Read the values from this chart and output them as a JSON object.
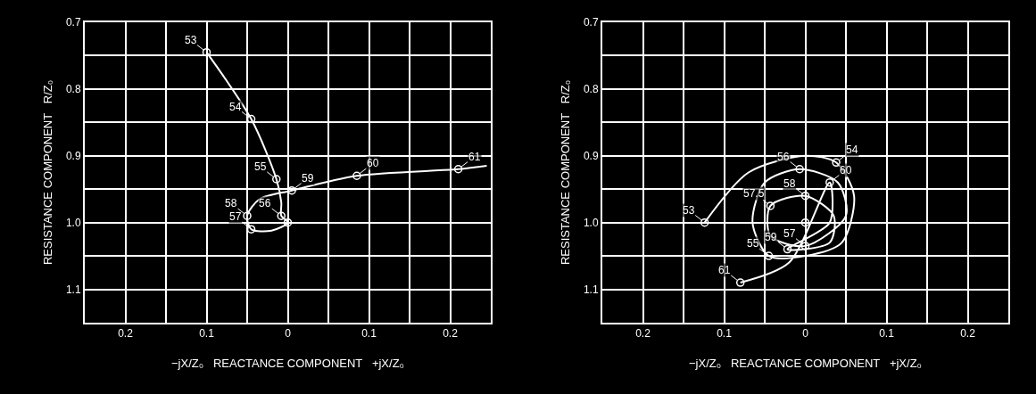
{
  "chart_data": [
    {
      "type": "line",
      "xlabel": "−jX/Z₀   REACTANCE COMPONENT   +jX/Z₀",
      "ylabel": "RESISTANCE COMPONENT   R/Z₀",
      "xlim": [
        -0.25,
        0.25
      ],
      "ylim": [
        1.15,
        0.7
      ],
      "xticks": [
        {
          "value": -0.25,
          "label": null
        },
        {
          "value": -0.2,
          "label": "0.2"
        },
        {
          "value": -0.15,
          "label": null
        },
        {
          "value": -0.1,
          "label": "0.1"
        },
        {
          "value": -0.05,
          "label": null
        },
        0,
        {
          "value": 0.05,
          "label": null
        },
        0.1,
        {
          "value": 0.15,
          "label": null
        },
        0.2,
        {
          "value": 0.25,
          "label": null
        }
      ],
      "yticks": [
        0.7,
        {
          "value": 0.75,
          "label": null
        },
        0.8,
        {
          "value": 0.85,
          "label": null
        },
        0.9,
        {
          "value": 0.95,
          "label": null
        },
        {
          "value": 1.0,
          "label": "1.0"
        },
        {
          "value": 1.05,
          "label": null
        },
        1.1,
        {
          "value": 1.15,
          "label": null
        }
      ],
      "grid": true,
      "series": [
        {
          "color": "#ffffff",
          "marker": "none",
          "x": [
            -0.1,
            -0.045,
            -0.014,
            -0.008,
            -0.008,
            0,
            -0.02,
            -0.045,
            -0.05,
            -0.035,
            0.005,
            0.085,
            0.21,
            0.245
          ],
          "values": [
            0.745,
            0.845,
            0.935,
            0.97,
            0.99,
            1.0,
            1.012,
            1.01,
            0.99,
            0.965,
            0.952,
            0.93,
            0.92,
            0.915
          ]
        },
        {
          "type": "scatter",
          "marker": "circle",
          "color": "#ffffff",
          "x": [
            -0.1,
            -0.045,
            -0.014,
            -0.008,
            -0.045,
            -0.05,
            0.005,
            0.085,
            0.21,
            0
          ],
          "values": [
            0.745,
            0.845,
            0.935,
            0.99,
            1.01,
            0.99,
            0.952,
            0.93,
            0.92,
            1.0
          ]
        }
      ],
      "annotations": [
        {
          "text": "53",
          "x": -0.1,
          "y": 0.745
        },
        {
          "text": "54",
          "x": -0.045,
          "y": 0.845
        },
        {
          "text": "55",
          "x": -0.014,
          "y": 0.935
        },
        {
          "text": "56",
          "x": -0.008,
          "y": 0.99
        },
        {
          "text": "57",
          "x": -0.045,
          "y": 1.01
        },
        {
          "text": "58",
          "x": -0.05,
          "y": 0.99
        },
        {
          "text": "59",
          "x": 0.005,
          "y": 0.952
        },
        {
          "text": "60",
          "x": 0.085,
          "y": 0.93
        },
        {
          "text": "61",
          "x": 0.21,
          "y": 0.92
        }
      ]
    },
    {
      "type": "line",
      "xlabel": "−jX/Z₀   REACTANCE COMPONENT   +jX/Z₀",
      "ylabel": "RESISTANCE COMPONENT   R/Z₀",
      "xlim": [
        -0.25,
        0.25
      ],
      "ylim": [
        1.15,
        0.7
      ],
      "xticks": [
        {
          "value": -0.25,
          "label": null
        },
        {
          "value": -0.2,
          "label": "0.2"
        },
        {
          "value": -0.15,
          "label": null
        },
        {
          "value": -0.1,
          "label": "0.1"
        },
        {
          "value": -0.05,
          "label": null
        },
        0,
        {
          "value": 0.05,
          "label": null
        },
        0.1,
        {
          "value": 0.15,
          "label": null
        },
        0.2,
        {
          "value": 0.25,
          "label": null
        }
      ],
      "yticks": [
        0.7,
        {
          "value": 0.75,
          "label": null
        },
        0.8,
        {
          "value": 0.85,
          "label": null
        },
        0.9,
        {
          "value": 0.95,
          "label": null
        },
        {
          "value": 1.0,
          "label": "1.0"
        },
        {
          "value": 1.05,
          "label": null
        },
        1.1,
        {
          "value": 1.15,
          "label": null
        }
      ],
      "grid": true,
      "series": [
        {
          "color": "#ffffff",
          "marker": "none",
          "x": [
            -0.124,
            -0.07,
            0,
            0.038,
            0.06,
            0.045,
            0,
            -0.045,
            -0.065,
            -0.05,
            -0.007,
            0.04,
            0.05,
            0,
            -0.043,
            -0.043,
            0,
            0.035,
            0.03,
            -0.022,
            0.03,
            0.03,
            -0.02,
            -0.08
          ],
          "values": [
            1.0,
            0.925,
            0.9,
            0.91,
            0.96,
            1.03,
            1.05,
            1.05,
            1.0,
            0.94,
            0.92,
            0.94,
            0.99,
            1.035,
            1.02,
            0.975,
            0.96,
            0.99,
            1.03,
            1.04,
            1.0,
            0.94,
            1.06,
            1.09
          ]
        },
        {
          "type": "scatter",
          "marker": "circle",
          "color": "#ffffff",
          "x": [
            -0.124,
            0.038,
            -0.045,
            -0.007,
            0,
            -0.043,
            0,
            -0.022,
            0.03,
            -0.08,
            0
          ],
          "values": [
            1.0,
            0.91,
            1.05,
            0.92,
            1.035,
            0.975,
            0.96,
            1.04,
            0.94,
            1.09,
            1.0
          ]
        }
      ],
      "annotations": [
        {
          "text": "53",
          "x": -0.124,
          "y": 1.0
        },
        {
          "text": "54",
          "x": 0.038,
          "y": 0.91
        },
        {
          "text": "55",
          "x": -0.045,
          "y": 1.05
        },
        {
          "text": "56",
          "x": -0.007,
          "y": 0.92
        },
        {
          "text": "57",
          "x": 0,
          "y": 1.035
        },
        {
          "text": "57.5",
          "x": -0.043,
          "y": 0.975
        },
        {
          "text": "58",
          "x": 0,
          "y": 0.96
        },
        {
          "text": "59",
          "x": -0.022,
          "y": 1.04
        },
        {
          "text": "60",
          "x": 0.03,
          "y": 0.94
        },
        {
          "text": "61",
          "x": -0.08,
          "y": 1.09
        }
      ]
    }
  ]
}
